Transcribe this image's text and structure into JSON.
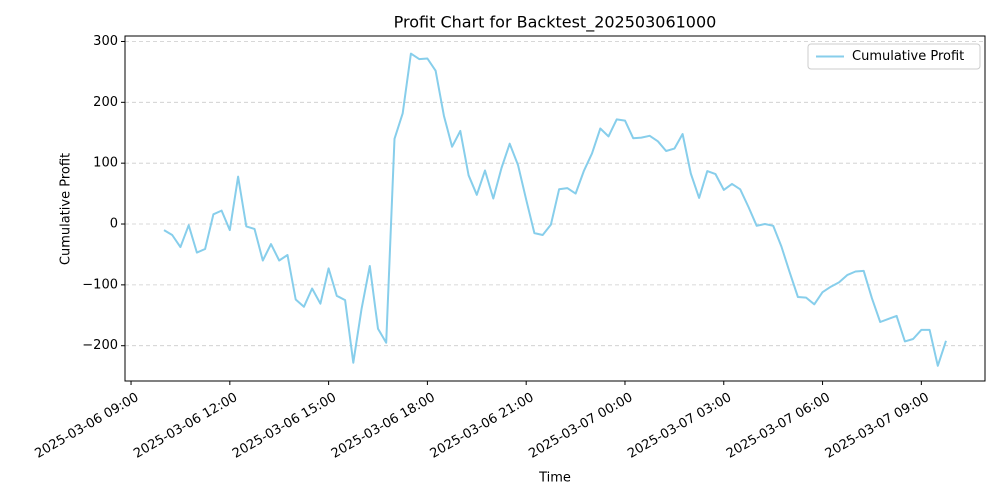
{
  "chart_data": {
    "type": "line",
    "title": "Profit Chart for Backtest_202503061000",
    "xlabel": "Time",
    "ylabel": "Cumulative Profit",
    "x": [
      "2025-03-06 10:00",
      "2025-03-06 10:15",
      "2025-03-06 10:30",
      "2025-03-06 10:45",
      "2025-03-06 11:00",
      "2025-03-06 11:15",
      "2025-03-06 11:30",
      "2025-03-06 11:45",
      "2025-03-06 12:00",
      "2025-03-06 12:15",
      "2025-03-06 12:30",
      "2025-03-06 12:45",
      "2025-03-06 13:00",
      "2025-03-06 13:15",
      "2025-03-06 13:30",
      "2025-03-06 13:45",
      "2025-03-06 14:00",
      "2025-03-06 14:15",
      "2025-03-06 14:30",
      "2025-03-06 14:45",
      "2025-03-06 15:00",
      "2025-03-06 15:15",
      "2025-03-06 15:30",
      "2025-03-06 15:45",
      "2025-03-06 16:00",
      "2025-03-06 16:15",
      "2025-03-06 16:30",
      "2025-03-06 16:45",
      "2025-03-06 17:00",
      "2025-03-06 17:15",
      "2025-03-06 17:30",
      "2025-03-06 17:45",
      "2025-03-06 18:00",
      "2025-03-06 18:15",
      "2025-03-06 18:30",
      "2025-03-06 18:45",
      "2025-03-06 19:00",
      "2025-03-06 19:15",
      "2025-03-06 19:30",
      "2025-03-06 19:45",
      "2025-03-06 20:00",
      "2025-03-06 20:15",
      "2025-03-06 20:30",
      "2025-03-06 20:45",
      "2025-03-06 21:00",
      "2025-03-06 21:15",
      "2025-03-06 21:30",
      "2025-03-06 21:45",
      "2025-03-06 22:00",
      "2025-03-06 22:15",
      "2025-03-06 22:30",
      "2025-03-06 22:45",
      "2025-03-06 23:00",
      "2025-03-06 23:15",
      "2025-03-06 23:30",
      "2025-03-06 23:45",
      "2025-03-07 00:00",
      "2025-03-07 00:15",
      "2025-03-07 00:30",
      "2025-03-07 00:45",
      "2025-03-07 01:00",
      "2025-03-07 01:15",
      "2025-03-07 01:30",
      "2025-03-07 01:45",
      "2025-03-07 02:00",
      "2025-03-07 02:15",
      "2025-03-07 02:30",
      "2025-03-07 02:45",
      "2025-03-07 03:00",
      "2025-03-07 03:15",
      "2025-03-07 03:30",
      "2025-03-07 03:45",
      "2025-03-07 04:00",
      "2025-03-07 04:15",
      "2025-03-07 04:30",
      "2025-03-07 04:45",
      "2025-03-07 05:00",
      "2025-03-07 05:15",
      "2025-03-07 05:30",
      "2025-03-07 05:45",
      "2025-03-07 06:00",
      "2025-03-07 06:15",
      "2025-03-07 06:30",
      "2025-03-07 06:45",
      "2025-03-07 07:00",
      "2025-03-07 07:15",
      "2025-03-07 07:30",
      "2025-03-07 07:45",
      "2025-03-07 08:00",
      "2025-03-07 08:15",
      "2025-03-07 08:30",
      "2025-03-07 08:45",
      "2025-03-07 09:00",
      "2025-03-07 09:15",
      "2025-03-07 09:30",
      "2025-03-07 09:45"
    ],
    "series": [
      {
        "name": "Cumulative Profit",
        "color": "#87ceeb",
        "values": [
          -10,
          -18,
          -38,
          -2,
          -47,
          -41,
          16,
          22,
          -10,
          78,
          -4,
          -8,
          -60,
          -33,
          -60,
          -51,
          -124,
          -136,
          -106,
          -131,
          -73,
          -118,
          -125,
          -228,
          -140,
          -69,
          -172,
          -195,
          140,
          182,
          280,
          271,
          272,
          252,
          178,
          127,
          153,
          80,
          48,
          88,
          42,
          92,
          132,
          97,
          40,
          -15,
          -18,
          -1,
          57,
          59,
          50,
          87,
          116,
          157,
          144,
          172,
          170,
          141,
          142,
          145,
          136,
          120,
          124,
          148,
          83,
          43,
          87,
          82,
          56,
          66,
          57,
          28,
          -3,
          0,
          -3,
          -37,
          -79,
          -120,
          -121,
          -132,
          -112,
          -103,
          -96,
          -84,
          -78,
          -77,
          -122,
          -161,
          -156,
          -151,
          -193,
          -189,
          -174,
          -174,
          -233,
          -192
        ]
      }
    ],
    "xlim": [
      "2025-03-06 08:49",
      "2025-03-07 10:56"
    ],
    "xticks": [
      {
        "value": "2025-03-06 09:00",
        "label": "2025-03-06 09:00"
      },
      {
        "value": "2025-03-06 12:00",
        "label": "2025-03-06 12:00"
      },
      {
        "value": "2025-03-06 15:00",
        "label": "2025-03-06 15:00"
      },
      {
        "value": "2025-03-06 18:00",
        "label": "2025-03-06 18:00"
      },
      {
        "value": "2025-03-06 21:00",
        "label": "2025-03-06 21:00"
      },
      {
        "value": "2025-03-07 00:00",
        "label": "2025-03-07 00:00"
      },
      {
        "value": "2025-03-07 03:00",
        "label": "2025-03-07 03:00"
      },
      {
        "value": "2025-03-07 06:00",
        "label": "2025-03-07 06:00"
      },
      {
        "value": "2025-03-07 09:00",
        "label": "2025-03-07 09:00"
      }
    ],
    "ylim": [
      -258,
      309
    ],
    "yticks": [
      {
        "value": -200,
        "label": "−200"
      },
      {
        "value": -100,
        "label": "−100"
      },
      0,
      100,
      200,
      300
    ],
    "grid": true,
    "legend": "upper right"
  }
}
